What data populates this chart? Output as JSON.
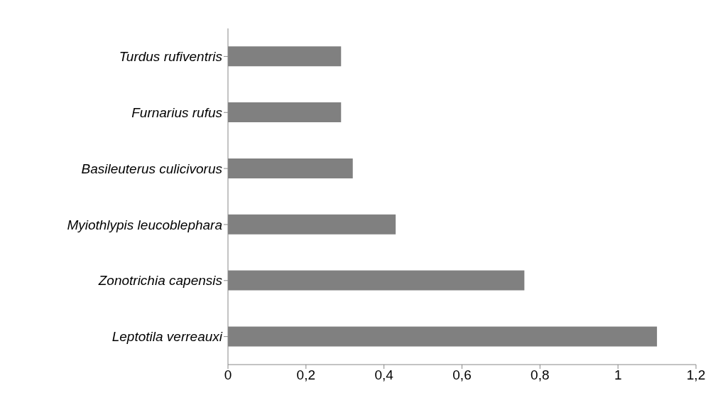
{
  "chart_data": {
    "type": "bar",
    "orientation": "horizontal",
    "categories": [
      "Turdus rufiventris",
      "Furnarius rufus",
      "Basileuterus culicivorus",
      "Myiothlypis leucoblephara",
      "Zonotrichia capensis",
      "Leptotila verreauxi"
    ],
    "values": [
      0.29,
      0.29,
      0.32,
      0.43,
      0.76,
      1.1
    ],
    "color": "#808080",
    "xlim": [
      0,
      1.2
    ],
    "xticks": [
      {
        "value": 0,
        "label": "0"
      },
      {
        "value": 0.2,
        "label": "0,2"
      },
      {
        "value": 0.4,
        "label": "0,4"
      },
      {
        "value": 0.6,
        "label": "0,6"
      },
      {
        "value": 0.8,
        "label": "0,8"
      },
      {
        "value": 1,
        "label": "1"
      },
      {
        "value": 1.2,
        "label": "1,2"
      }
    ],
    "grid": false
  }
}
